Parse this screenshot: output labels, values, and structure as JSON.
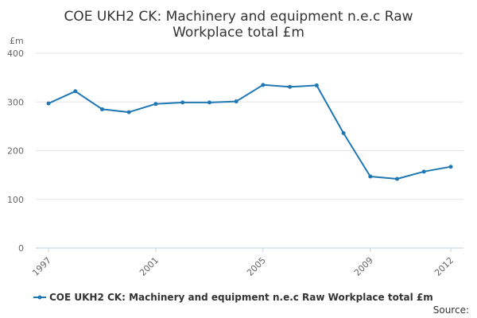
{
  "chart_data": {
    "type": "line",
    "title": "COE UKH2 CK: Machinery and equipment n.e.c Raw Workplace total £m",
    "title_lines": [
      "COE UKH2 CK: Machinery and equipment n.e.c Raw",
      "Workplace total £m"
    ],
    "y_unit": "£m",
    "ylim": [
      0,
      400
    ],
    "y_ticks": [
      0,
      100,
      200,
      300,
      400
    ],
    "y_tick_labels": [
      "0",
      "100",
      "200",
      "300",
      "400"
    ],
    "xlim": [
      1997,
      2012
    ],
    "x_ticks": [
      1997,
      2001,
      2005,
      2009,
      2012
    ],
    "x_tick_labels": [
      "1997",
      "2001",
      "2005",
      "2009",
      "2012"
    ],
    "grid": true,
    "legend_position": "bottom",
    "series": [
      {
        "name": "COE UKH2 CK: Machinery and equipment n.e.c Raw Workplace total £m",
        "color": "#1f77b4",
        "x": [
          1997,
          1998,
          1999,
          2000,
          2001,
          2002,
          2003,
          2004,
          2005,
          2006,
          2007,
          2008,
          2009,
          2010,
          2011,
          2012
        ],
        "values": [
          297,
          322,
          285,
          279,
          296,
          299,
          299,
          301,
          335,
          331,
          334,
          236,
          147,
          142,
          157,
          167
        ]
      }
    ],
    "source_label": "Source:"
  }
}
